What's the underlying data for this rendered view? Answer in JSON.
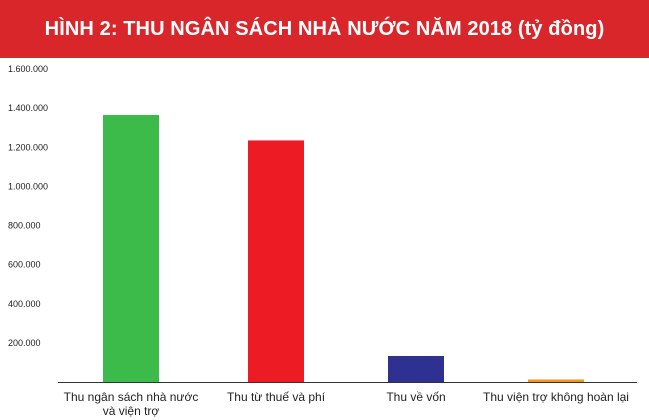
{
  "chart_data": {
    "type": "bar",
    "title": "HÌNH 2: THU NGÂN SÁCH NHÀ NƯỚC NĂM 2018 (tỷ đồng)",
    "xlabel": "",
    "ylabel": "",
    "categories": [
      "Thu ngân sách nhà nước và viện trợ",
      "Thu từ thuế và phí",
      "Thu về vốn",
      "Thu viện trợ không hoàn lại"
    ],
    "category_lines": [
      [
        "Thu ngân sách nhà nước",
        "và viện trợ"
      ],
      [
        "Thu từ thuế và phí"
      ],
      [
        "Thu về vốn"
      ],
      [
        "Thu viện trợ không hoàn lại"
      ]
    ],
    "values": [
      1365000,
      1235000,
      133000,
      13000
    ],
    "colors": [
      "#3dbb4a",
      "#ed1c24",
      "#2e3192",
      "#f7941d"
    ],
    "ylim": [
      0,
      1600000
    ],
    "yticks": [
      200000,
      400000,
      600000,
      800000,
      1000000,
      1200000,
      1400000,
      1600000
    ],
    "ytick_labels": [
      "200.000",
      "400.000",
      "600.000",
      "800.000",
      "1.000.000",
      "1.200.000",
      "1.400.000",
      "1.600.000"
    ],
    "grid": false,
    "legend": "none"
  },
  "colors": {
    "title_background": "#d9262a",
    "title_text": "#ffffff",
    "axis": "#333333"
  }
}
